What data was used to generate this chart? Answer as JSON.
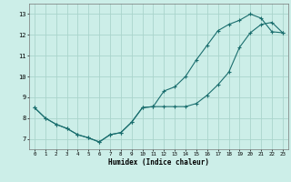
{
  "xlabel": "Humidex (Indice chaleur)",
  "bg_color": "#cceee8",
  "grid_color": "#aad4cc",
  "line_color": "#1a6e6e",
  "line1_x": [
    0,
    1,
    2,
    3,
    4,
    5,
    6,
    7,
    8,
    9,
    10,
    11,
    12,
    13,
    14,
    15,
    16,
    17,
    18,
    19,
    20,
    21,
    22,
    23
  ],
  "line1_y": [
    8.5,
    8.0,
    7.7,
    7.5,
    7.2,
    7.05,
    6.85,
    7.2,
    7.3,
    7.8,
    8.5,
    8.55,
    9.3,
    9.5,
    10.0,
    10.8,
    11.5,
    12.2,
    12.5,
    12.7,
    13.0,
    12.8,
    12.15,
    12.1
  ],
  "line2_x": [
    0,
    1,
    2,
    3,
    4,
    5,
    6,
    7,
    8,
    9,
    10,
    11,
    12,
    13,
    14,
    15,
    16,
    17,
    18,
    19,
    20,
    21,
    22,
    23
  ],
  "line2_y": [
    8.5,
    8.0,
    7.7,
    7.5,
    7.2,
    7.05,
    6.85,
    7.2,
    7.3,
    7.8,
    8.5,
    8.55,
    8.55,
    8.55,
    8.55,
    8.7,
    9.1,
    9.6,
    10.2,
    11.4,
    12.1,
    12.5,
    12.6,
    12.1
  ],
  "ylim": [
    6.5,
    13.5
  ],
  "xlim": [
    -0.5,
    23.5
  ],
  "yticks": [
    7,
    8,
    9,
    10,
    11,
    12,
    13
  ],
  "xticks": [
    0,
    1,
    2,
    3,
    4,
    5,
    6,
    7,
    8,
    9,
    10,
    11,
    12,
    13,
    14,
    15,
    16,
    17,
    18,
    19,
    20,
    21,
    22,
    23
  ]
}
